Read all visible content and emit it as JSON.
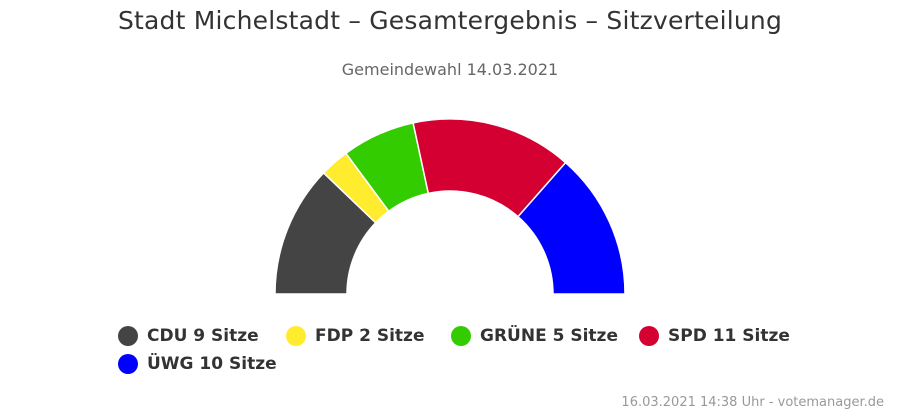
{
  "title": "Stadt Michelstadt – Gesamtergebnis – Sitzverteilung",
  "subtitle": "Gemeindewahl 14.03.2021",
  "credit": "16.03.2021 14:38 Uhr - votemanager.de",
  "legend": [
    {
      "label": "CDU 9 Sitze",
      "color": "#444444"
    },
    {
      "label": "FDP 2 Sitze",
      "color": "#ffec2e"
    },
    {
      "label": "GRÜNE 5 Sitze",
      "color": "#33cc00"
    },
    {
      "label": "SPD 11 Sitze",
      "color": "#d50032"
    },
    {
      "label": "ÜWG 10 Sitze",
      "color": "#0000ff"
    }
  ],
  "chart_data": {
    "type": "pie",
    "variant": "semicircle-donut",
    "title": "Stadt Michelstadt – Gesamtergebnis – Sitzverteilung",
    "subtitle": "Gemeindewahl 14.03.2021",
    "categories": [
      "CDU",
      "FDP",
      "GRÜNE",
      "SPD",
      "ÜWG"
    ],
    "values": [
      9,
      2,
      5,
      11,
      10
    ],
    "unit": "Sitze",
    "colors": [
      "#444444",
      "#ffec2e",
      "#33cc00",
      "#d50032",
      "#0000ff"
    ],
    "legend_position": "bottom"
  }
}
